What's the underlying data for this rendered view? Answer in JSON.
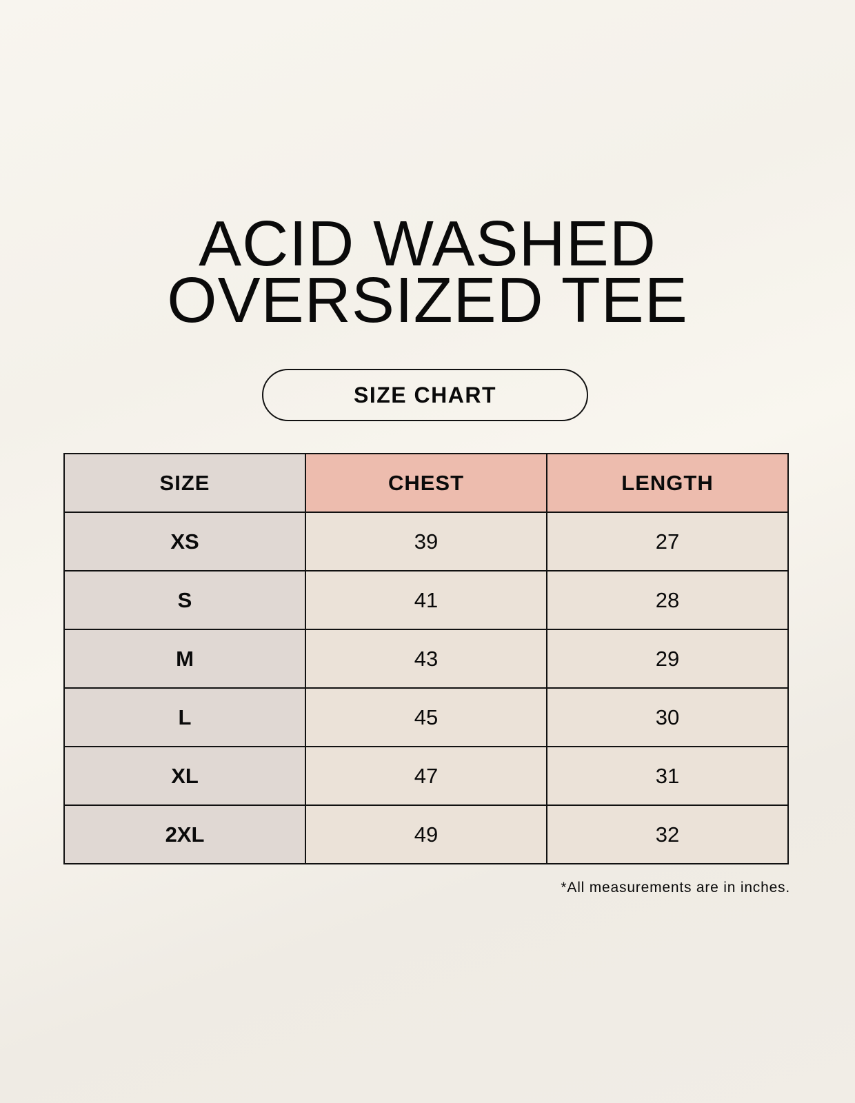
{
  "title": {
    "line1": "ACID WASHED",
    "line2": "OVERSIZED TEE"
  },
  "subtitle": "SIZE CHART",
  "colors": {
    "size_column": "#e0d8d3",
    "header": "#edbcae",
    "cells": "#ebe2d8"
  },
  "table": {
    "headers": [
      "SIZE",
      "CHEST",
      "LENGTH"
    ],
    "rows": [
      [
        "XS",
        "39",
        "27"
      ],
      [
        "S",
        "41",
        "28"
      ],
      [
        "M",
        "43",
        "29"
      ],
      [
        "L",
        "45",
        "30"
      ],
      [
        "XL",
        "47",
        "31"
      ],
      [
        "2XL",
        "49",
        "32"
      ]
    ]
  },
  "footnote": "*All measurements are in inches."
}
